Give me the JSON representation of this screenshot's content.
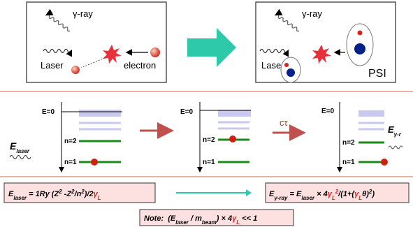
{
  "top_left": {
    "gamma_label": "γ-ray",
    "laser_label": "Laser",
    "electron_label": "electron"
  },
  "top_right": {
    "gamma_label": "γ-ray",
    "laser_label": "Laser",
    "psi_label": "PSI"
  },
  "levels": [
    {
      "zero": "E=0",
      "n2": "n=2",
      "n1": "n=1"
    },
    {
      "zero": "E=0",
      "n2": "n=2",
      "n1": "n=1"
    },
    {
      "zero": "E=0",
      "n2": "n=2",
      "n1": "n=1"
    }
  ],
  "laser_photon": [
    "E",
    "laser"
  ],
  "decay_label": "cτ",
  "gamma_photon": [
    "E",
    "γ-r"
  ],
  "formula_left": [
    "E",
    "laser",
    " = 1Ry (Z",
    "2",
    " -Z",
    "2",
    "/n",
    "2",
    ")/2",
    "γ",
    "L"
  ],
  "formula_right": [
    "E",
    "γ-ray",
    " = E",
    "laser",
    " × 4",
    "γ",
    "L",
    "2",
    "/(1+(",
    "γ",
    "L",
    "θ)",
    "2",
    ")"
  ],
  "note": [
    "Note:  (E",
    "laser",
    " / m",
    "beam",
    ") × 4",
    "γ",
    "L",
    " << 1"
  ]
}
